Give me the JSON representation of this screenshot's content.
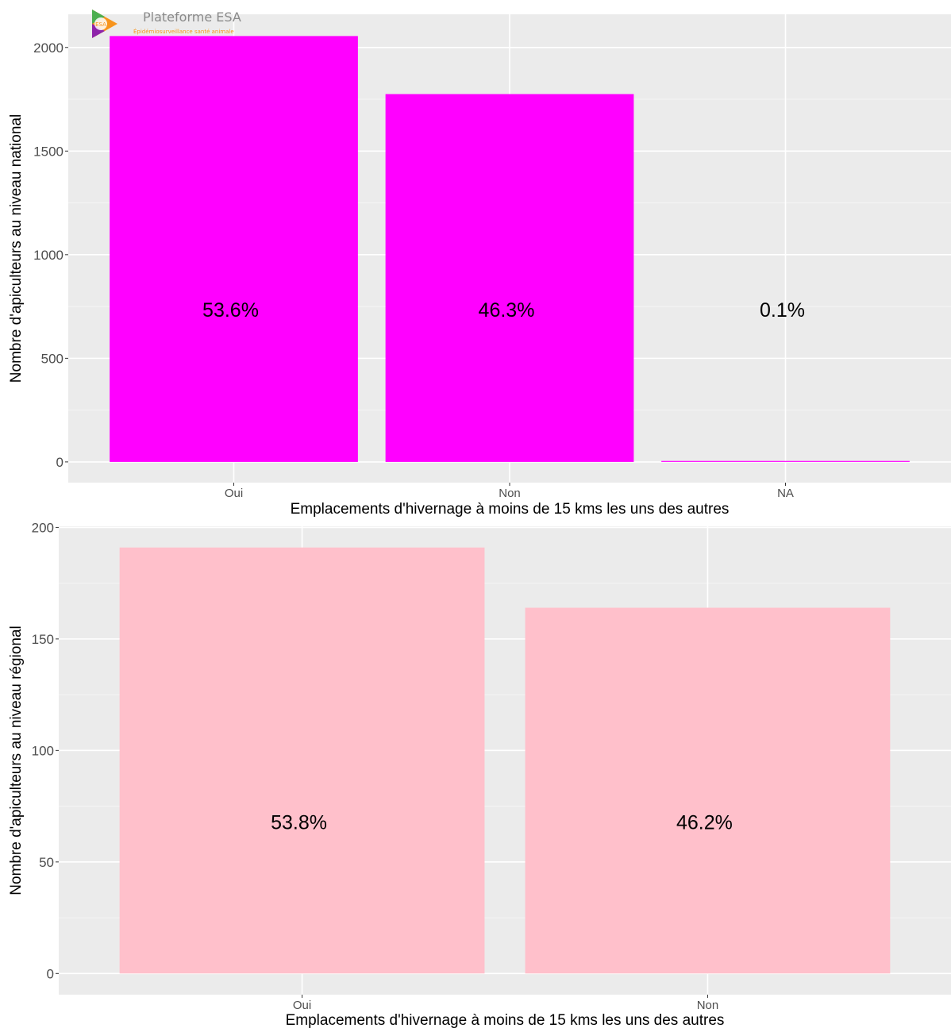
{
  "logo": {
    "title": "Plateforme ESA",
    "subtitle": "Épidémiosurveillance santé animale",
    "badge": "ESA"
  },
  "chart_data": [
    {
      "type": "bar",
      "categories": [
        "Oui",
        "Non",
        "NA"
      ],
      "values": [
        2055,
        1775,
        4
      ],
      "labels": [
        "53.6%",
        "46.3%",
        "0.1%"
      ],
      "label_value": 735,
      "xlabel": "Emplacements d'hivernage à moins de 15 kms les uns des autres",
      "ylabel": "Nombre d'apiculteurs au niveau national",
      "yticks": [
        0,
        500,
        1000,
        1500,
        2000
      ],
      "ylim": [
        -100,
        2160
      ],
      "bar_color": "#ff00ff",
      "panel_color": "#ebebeb",
      "grid": true
    },
    {
      "type": "bar",
      "categories": [
        "Oui",
        "Non"
      ],
      "values": [
        191,
        164
      ],
      "labels": [
        "53.8%",
        "46.2%"
      ],
      "label_value": 68,
      "xlabel": "Emplacements d'hivernage à moins de 15 kms les uns des autres",
      "ylabel": "Nombre d'apiculteurs au niveau régional",
      "yticks": [
        0,
        50,
        100,
        150,
        200
      ],
      "ylim": [
        -9.5,
        200.5
      ],
      "bar_color": "#ffc0cb",
      "panel_color": "#ebebeb",
      "grid": true
    }
  ]
}
